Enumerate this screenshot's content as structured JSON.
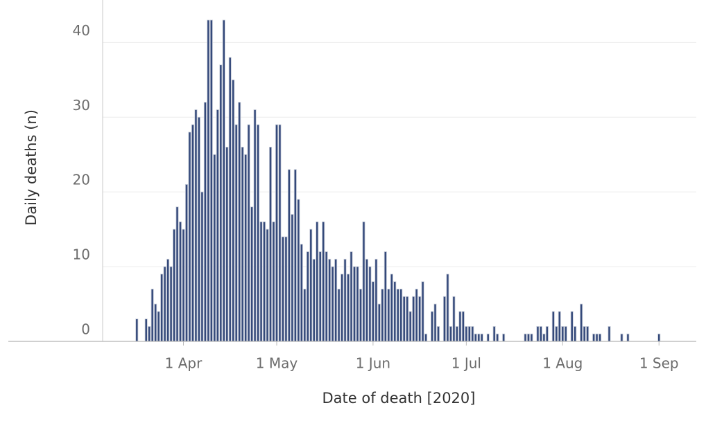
{
  "chart_data": {
    "type": "bar",
    "x_label": "Date of death [2020]",
    "y_label": "Daily deaths (n)",
    "color": "#34497a",
    "grid": true,
    "xlim": [
      "2020-03-06",
      "2020-09-13"
    ],
    "ylim": [
      0,
      45.5
    ],
    "yticks": [
      0,
      10,
      20,
      30,
      40
    ],
    "xticks": [
      {
        "value": "2020-04-01",
        "label": "1 Apr"
      },
      {
        "value": "2020-05-01",
        "label": "1 May"
      },
      {
        "value": "2020-06-01",
        "label": "1 Jun"
      },
      {
        "value": "2020-07-01",
        "label": "1 Jul"
      },
      {
        "value": "2020-08-01",
        "label": "1 Aug"
      },
      {
        "value": "2020-09-01",
        "label": "1 Sep"
      }
    ],
    "x": [
      "2020-03-17",
      "2020-03-18",
      "2020-03-19",
      "2020-03-20",
      "2020-03-21",
      "2020-03-22",
      "2020-03-23",
      "2020-03-24",
      "2020-03-25",
      "2020-03-26",
      "2020-03-27",
      "2020-03-28",
      "2020-03-29",
      "2020-03-30",
      "2020-03-31",
      "2020-04-01",
      "2020-04-02",
      "2020-04-03",
      "2020-04-04",
      "2020-04-05",
      "2020-04-06",
      "2020-04-07",
      "2020-04-08",
      "2020-04-09",
      "2020-04-10",
      "2020-04-11",
      "2020-04-12",
      "2020-04-13",
      "2020-04-14",
      "2020-04-15",
      "2020-04-16",
      "2020-04-17",
      "2020-04-18",
      "2020-04-19",
      "2020-04-20",
      "2020-04-21",
      "2020-04-22",
      "2020-04-23",
      "2020-04-24",
      "2020-04-25",
      "2020-04-26",
      "2020-04-27",
      "2020-04-28",
      "2020-04-29",
      "2020-04-30",
      "2020-05-01",
      "2020-05-02",
      "2020-05-03",
      "2020-05-04",
      "2020-05-05",
      "2020-05-06",
      "2020-05-07",
      "2020-05-08",
      "2020-05-09",
      "2020-05-10",
      "2020-05-11",
      "2020-05-12",
      "2020-05-13",
      "2020-05-14",
      "2020-05-15",
      "2020-05-16",
      "2020-05-17",
      "2020-05-18",
      "2020-05-19",
      "2020-05-20",
      "2020-05-21",
      "2020-05-22",
      "2020-05-23",
      "2020-05-24",
      "2020-05-25",
      "2020-05-26",
      "2020-05-27",
      "2020-05-28",
      "2020-05-29",
      "2020-05-30",
      "2020-05-31",
      "2020-06-01",
      "2020-06-02",
      "2020-06-03",
      "2020-06-04",
      "2020-06-05",
      "2020-06-06",
      "2020-06-07",
      "2020-06-08",
      "2020-06-09",
      "2020-06-10",
      "2020-06-11",
      "2020-06-12",
      "2020-06-13",
      "2020-06-14",
      "2020-06-15",
      "2020-06-16",
      "2020-06-17",
      "2020-06-18",
      "2020-06-19",
      "2020-06-20",
      "2020-06-21",
      "2020-06-22",
      "2020-06-23",
      "2020-06-24",
      "2020-06-25",
      "2020-06-26",
      "2020-06-27",
      "2020-06-28",
      "2020-06-29",
      "2020-06-30",
      "2020-07-01",
      "2020-07-02",
      "2020-07-03",
      "2020-07-04",
      "2020-07-05",
      "2020-07-06",
      "2020-07-07",
      "2020-07-08",
      "2020-07-09",
      "2020-07-10",
      "2020-07-11",
      "2020-07-12",
      "2020-07-13",
      "2020-07-14",
      "2020-07-15",
      "2020-07-16",
      "2020-07-17",
      "2020-07-18",
      "2020-07-19",
      "2020-07-20",
      "2020-07-21",
      "2020-07-22",
      "2020-07-23",
      "2020-07-24",
      "2020-07-25",
      "2020-07-26",
      "2020-07-27",
      "2020-07-28",
      "2020-07-29",
      "2020-07-30",
      "2020-07-31",
      "2020-08-01",
      "2020-08-02",
      "2020-08-03",
      "2020-08-04",
      "2020-08-05",
      "2020-08-06",
      "2020-08-07",
      "2020-08-08",
      "2020-08-09",
      "2020-08-10",
      "2020-08-11",
      "2020-08-12",
      "2020-08-13",
      "2020-08-14",
      "2020-08-15",
      "2020-08-16",
      "2020-08-17",
      "2020-08-18",
      "2020-08-19",
      "2020-08-20",
      "2020-08-21",
      "2020-08-22",
      "2020-08-23",
      "2020-08-24",
      "2020-08-25",
      "2020-08-26",
      "2020-08-27",
      "2020-08-28",
      "2020-08-29",
      "2020-08-30",
      "2020-08-31",
      "2020-09-01"
    ],
    "values": [
      3,
      0,
      0,
      3,
      2,
      7,
      5,
      4,
      9,
      10,
      11,
      10,
      15,
      18,
      16,
      15,
      21,
      28,
      29,
      31,
      30,
      20,
      32,
      43,
      43,
      25,
      31,
      37,
      43,
      26,
      38,
      35,
      29,
      32,
      26,
      25,
      29,
      18,
      31,
      29,
      16,
      16,
      15,
      26,
      16,
      29,
      29,
      14,
      14,
      23,
      17,
      23,
      19,
      13,
      7,
      12,
      15,
      11,
      16,
      12,
      16,
      12,
      11,
      10,
      11,
      7,
      9,
      11,
      9,
      12,
      10,
      10,
      7,
      16,
      11,
      10,
      8,
      11,
      5,
      7,
      12,
      7,
      9,
      8,
      7,
      7,
      6,
      6,
      4,
      6,
      7,
      6,
      8,
      1,
      0,
      4,
      5,
      2,
      0,
      6,
      9,
      2,
      6,
      2,
      4,
      4,
      2,
      2,
      2,
      1,
      1,
      1,
      0,
      1,
      0,
      2,
      1,
      0,
      1,
      0,
      0,
      0,
      0,
      0,
      0,
      1,
      1,
      1,
      0,
      2,
      2,
      1,
      2,
      0,
      4,
      2,
      4,
      2,
      2,
      0,
      4,
      2,
      0,
      5,
      2,
      2,
      0,
      1,
      1,
      1,
      0,
      0,
      2,
      0,
      0,
      0,
      1,
      0,
      1,
      0,
      0,
      0,
      0,
      0,
      0,
      0,
      0,
      0,
      1
    ]
  }
}
